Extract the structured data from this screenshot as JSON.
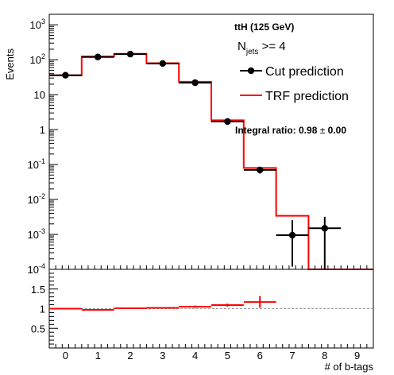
{
  "chart_data": [
    {
      "type": "line",
      "xlabel": "",
      "ylabel": "Events",
      "xlim": [
        -0.5,
        9.5
      ],
      "ylim": [
        0.0001,
        2000
      ],
      "yscale": "log",
      "grid": false,
      "legend_position": "top-right",
      "header": "ttH (125 GeV)",
      "selection": {
        "prefix": "N",
        "subscript": "jets",
        "suffix": " >= 4"
      },
      "annotation": {
        "prefix": "Integral ratio: 0.98 ",
        "pm": "±",
        "suffix": " 0.00"
      },
      "ytick_labels": [
        {
          "y": 1000,
          "base": "10",
          "exp": "3"
        },
        {
          "y": 100,
          "base": "10",
          "exp": "2"
        },
        {
          "y": 10,
          "base": "10",
          "exp": ""
        },
        {
          "y": 1,
          "base": "1",
          "exp": ""
        },
        {
          "y": 0.1,
          "base": "10",
          "exp": "-1"
        },
        {
          "y": 0.01,
          "base": "10",
          "exp": "-2"
        },
        {
          "y": 0.001,
          "base": "10",
          "exp": "-3"
        },
        {
          "y": 0.0001,
          "base": "10",
          "exp": "-4"
        }
      ],
      "series": [
        {
          "name": "Cut prediction",
          "style": "markers",
          "color": "#000000",
          "x": [
            0,
            1,
            2,
            3,
            4,
            5,
            6,
            7,
            8
          ],
          "y": [
            36,
            120,
            145,
            78,
            22,
            1.7,
            0.07,
            0.00095,
            0.0015
          ],
          "yerr_low": [
            1.3,
            2.5,
            2.8,
            2,
            1.1,
            0.3,
            0.015,
            0.00083,
            0.0014
          ],
          "yerr_high": [
            1.3,
            2.5,
            2.8,
            2,
            1.1,
            0.3,
            0.015,
            0.0016,
            0.0017
          ]
        },
        {
          "name": "TRF prediction",
          "style": "step",
          "color": "#ff0000",
          "x": [
            0,
            1,
            2,
            3,
            4,
            5,
            6,
            7,
            8,
            9
          ],
          "y": [
            36,
            125,
            148,
            80,
            23.5,
            1.85,
            0.08,
            0.0034,
            0.0001,
            0.0001
          ]
        }
      ]
    },
    {
      "type": "line",
      "xlabel": "# of b-tags",
      "ylabel": "",
      "xlim": [
        -0.5,
        9.5
      ],
      "ylim": [
        0,
        2
      ],
      "reference_line": 1,
      "yticks": [
        "1.5",
        "1",
        "0.5"
      ],
      "xticks": [
        "0",
        "1",
        "2",
        "3",
        "4",
        "5",
        "6",
        "7",
        "8",
        "9"
      ],
      "series": [
        {
          "name": "",
          "style": "crosses",
          "color": "#ff0000",
          "x": [
            0,
            1,
            2,
            3,
            4,
            5,
            6
          ],
          "y": [
            1.0,
            0.97,
            1.01,
            1.02,
            1.05,
            1.09,
            1.17
          ],
          "yerr": [
            0.02,
            0.02,
            0.02,
            0.02,
            0.03,
            0.04,
            0.15
          ]
        }
      ]
    }
  ]
}
